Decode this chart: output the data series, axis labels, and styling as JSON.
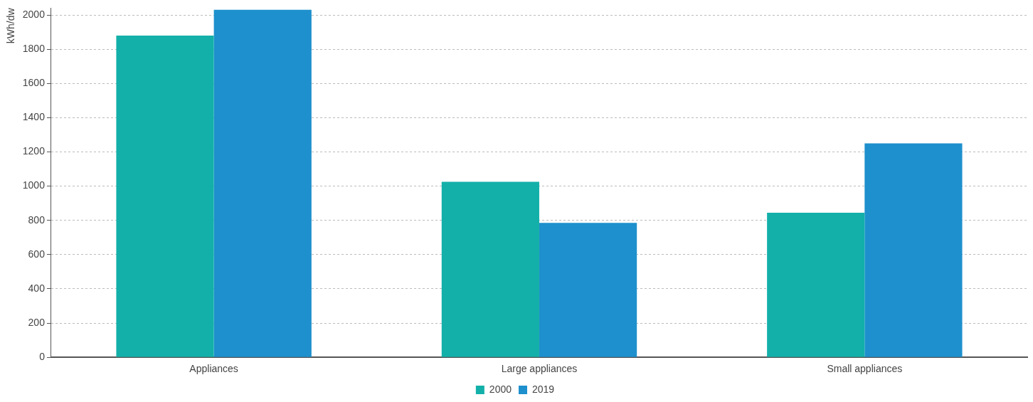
{
  "chart_data": {
    "type": "bar",
    "ylabel": "kWh/dw",
    "categories": [
      "Appliances",
      "Large appliances",
      "Small appliances"
    ],
    "series": [
      {
        "name": "2000",
        "color": "#13b0a9",
        "values": [
          1880,
          1025,
          845
        ]
      },
      {
        "name": "2019",
        "color": "#1e90cd",
        "values": [
          2030,
          785,
          1250
        ]
      }
    ],
    "ylim": [
      0,
      2040
    ],
    "yticks": [
      0,
      200,
      400,
      600,
      800,
      1000,
      1200,
      1400,
      1600,
      1800,
      2000
    ],
    "grid": "y",
    "legend": "bottom"
  }
}
